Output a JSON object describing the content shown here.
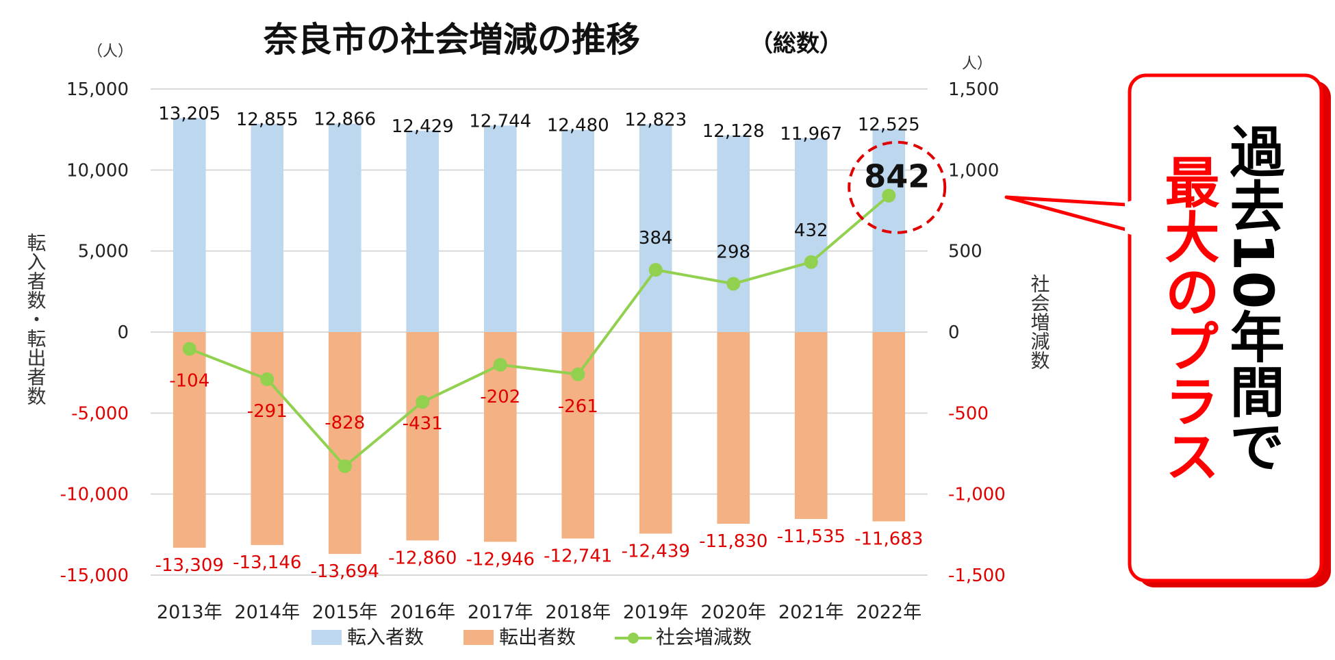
{
  "chart_data": {
    "type": "bar",
    "title": "奈良市の社会増減の推移",
    "subtitle": "（総数）",
    "categories": [
      "2013年",
      "2014年",
      "2015年",
      "2016年",
      "2017年",
      "2018年",
      "2019年",
      "2020年",
      "2021年",
      "2022年"
    ],
    "series": [
      {
        "name": "転入者数",
        "type": "bar",
        "axis": "left",
        "color": "#bdd7ee",
        "values": [
          13205,
          12855,
          12866,
          12429,
          12744,
          12480,
          12823,
          12128,
          11967,
          12525
        ],
        "labels": [
          "13,205",
          "12,855",
          "12,866",
          "12,429",
          "12,744",
          "12,480",
          "12,823",
          "12,128",
          "11,967",
          "12,525"
        ]
      },
      {
        "name": "転出者数",
        "type": "bar",
        "axis": "left",
        "color": "#f4b183",
        "values": [
          -13309,
          -13146,
          -13694,
          -12860,
          -12946,
          -12741,
          -12439,
          -11830,
          -11535,
          -11683
        ],
        "labels": [
          "-13,309",
          "-13,146",
          "-13,694",
          "-12,860",
          "-12,946",
          "-12,741",
          "-12,439",
          "-11,830",
          "-11,535",
          "-11,683"
        ]
      },
      {
        "name": "社会増減数",
        "type": "line",
        "axis": "right",
        "color": "#92d050",
        "values": [
          -104,
          -291,
          -828,
          -431,
          -202,
          -261,
          384,
          298,
          432,
          842
        ],
        "labels": [
          "-104",
          "-291",
          "-828",
          "-431",
          "-202",
          "-261",
          "384",
          "298",
          "432",
          "842"
        ]
      }
    ],
    "left_axis": {
      "title": "転入者数・転出者数",
      "unit": "（人）",
      "ylim": [
        -15000,
        15000
      ],
      "ticks": [
        15000,
        10000,
        5000,
        0,
        -5000,
        -10000,
        -15000
      ],
      "tick_labels": [
        "15,000",
        "10,000",
        "5,000",
        "0",
        "-5,000",
        "-10,000",
        "-15,000"
      ]
    },
    "right_axis": {
      "title": "社会増減数",
      "unit": "人）",
      "ylim": [
        -1500,
        1500
      ],
      "ticks": [
        1500,
        1000,
        500,
        0,
        -500,
        -1000,
        -1500
      ],
      "tick_labels": [
        "1,500",
        "1,000",
        "500",
        "0",
        "-500",
        "-1,000",
        "-1,500"
      ]
    },
    "gridlines": true,
    "legend": {
      "position": "bottom",
      "entries": [
        "転入者数",
        "転出者数",
        "社会増減数"
      ]
    },
    "highlight": {
      "category": "2022年",
      "value_label": "842"
    }
  },
  "callout": {
    "line1": "過去10年間で",
    "line2": "最大のプラス",
    "colors": {
      "text": "#000000",
      "accent": "#ff0000",
      "border": "#ff0000",
      "shadow": "#e00000"
    }
  }
}
